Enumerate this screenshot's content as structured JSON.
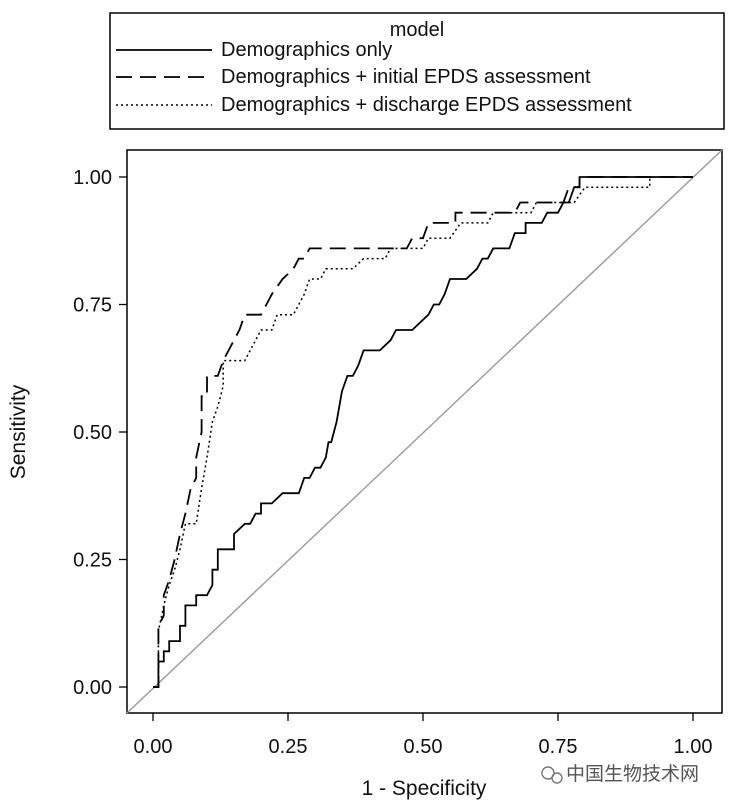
{
  "chart_data": {
    "type": "line",
    "xlabel": "1 - Specificity",
    "ylabel": "Sensitivity",
    "xlim": [
      0,
      1
    ],
    "ylim": [
      0,
      1
    ],
    "xticks": [
      "0.00",
      "0.25",
      "0.50",
      "0.75",
      "1.00"
    ],
    "yticks": [
      "0.00",
      "0.25",
      "0.50",
      "0.75",
      "1.00"
    ],
    "legend": {
      "title": "model",
      "placement": "top"
    },
    "reference_line": {
      "from": [
        0,
        0
      ],
      "to": [
        1,
        1
      ],
      "color": "#9a9a9a"
    },
    "series": [
      {
        "name": "Demographics only",
        "style": "solid",
        "points": [
          [
            0,
            0
          ],
          [
            0.01,
            0
          ],
          [
            0.01,
            0.02
          ],
          [
            0.01,
            0.05
          ],
          [
            0.02,
            0.05
          ],
          [
            0.02,
            0.07
          ],
          [
            0.03,
            0.07
          ],
          [
            0.03,
            0.09
          ],
          [
            0.05,
            0.09
          ],
          [
            0.05,
            0.12
          ],
          [
            0.06,
            0.12
          ],
          [
            0.06,
            0.16
          ],
          [
            0.08,
            0.16
          ],
          [
            0.08,
            0.18
          ],
          [
            0.1,
            0.18
          ],
          [
            0.11,
            0.2
          ],
          [
            0.11,
            0.23
          ],
          [
            0.12,
            0.23
          ],
          [
            0.12,
            0.27
          ],
          [
            0.15,
            0.27
          ],
          [
            0.15,
            0.3
          ],
          [
            0.17,
            0.32
          ],
          [
            0.18,
            0.32
          ],
          [
            0.19,
            0.34
          ],
          [
            0.2,
            0.34
          ],
          [
            0.2,
            0.36
          ],
          [
            0.22,
            0.36
          ],
          [
            0.24,
            0.38
          ],
          [
            0.27,
            0.38
          ],
          [
            0.28,
            0.41
          ],
          [
            0.29,
            0.41
          ],
          [
            0.3,
            0.43
          ],
          [
            0.31,
            0.43
          ],
          [
            0.32,
            0.45
          ],
          [
            0.325,
            0.48
          ],
          [
            0.33,
            0.48
          ],
          [
            0.34,
            0.52
          ],
          [
            0.345,
            0.55
          ],
          [
            0.35,
            0.58
          ],
          [
            0.36,
            0.61
          ],
          [
            0.37,
            0.61
          ],
          [
            0.38,
            0.63
          ],
          [
            0.39,
            0.66
          ],
          [
            0.42,
            0.66
          ],
          [
            0.44,
            0.68
          ],
          [
            0.45,
            0.7
          ],
          [
            0.48,
            0.7
          ],
          [
            0.51,
            0.73
          ],
          [
            0.52,
            0.75
          ],
          [
            0.53,
            0.75
          ],
          [
            0.54,
            0.77
          ],
          [
            0.55,
            0.8
          ],
          [
            0.58,
            0.8
          ],
          [
            0.6,
            0.82
          ],
          [
            0.61,
            0.84
          ],
          [
            0.62,
            0.84
          ],
          [
            0.63,
            0.86
          ],
          [
            0.66,
            0.86
          ],
          [
            0.67,
            0.89
          ],
          [
            0.69,
            0.89
          ],
          [
            0.69,
            0.91
          ],
          [
            0.72,
            0.91
          ],
          [
            0.73,
            0.93
          ],
          [
            0.75,
            0.93
          ],
          [
            0.76,
            0.95
          ],
          [
            0.77,
            0.95
          ],
          [
            0.78,
            0.98
          ],
          [
            0.79,
            0.98
          ],
          [
            0.79,
            1.0
          ],
          [
            0.85,
            1.0
          ],
          [
            1.0,
            1.0
          ]
        ]
      },
      {
        "name": "Demographics + initial EPDS assessment",
        "style": "dashed",
        "points": [
          [
            0,
            0
          ],
          [
            0.01,
            0
          ],
          [
            0.01,
            0.07
          ],
          [
            0.01,
            0.12
          ],
          [
            0.02,
            0.14
          ],
          [
            0.02,
            0.18
          ],
          [
            0.03,
            0.21
          ],
          [
            0.04,
            0.25
          ],
          [
            0.05,
            0.3
          ],
          [
            0.06,
            0.34
          ],
          [
            0.07,
            0.39
          ],
          [
            0.08,
            0.41
          ],
          [
            0.08,
            0.45
          ],
          [
            0.09,
            0.5
          ],
          [
            0.09,
            0.57
          ],
          [
            0.1,
            0.57
          ],
          [
            0.1,
            0.61
          ],
          [
            0.12,
            0.61
          ],
          [
            0.13,
            0.64
          ],
          [
            0.15,
            0.68
          ],
          [
            0.16,
            0.7
          ],
          [
            0.17,
            0.73
          ],
          [
            0.2,
            0.73
          ],
          [
            0.21,
            0.75
          ],
          [
            0.22,
            0.77
          ],
          [
            0.24,
            0.8
          ],
          [
            0.26,
            0.82
          ],
          [
            0.27,
            0.84
          ],
          [
            0.28,
            0.84
          ],
          [
            0.29,
            0.86
          ],
          [
            0.47,
            0.86
          ],
          [
            0.48,
            0.88
          ],
          [
            0.5,
            0.88
          ],
          [
            0.51,
            0.91
          ],
          [
            0.56,
            0.91
          ],
          [
            0.56,
            0.93
          ],
          [
            0.67,
            0.93
          ],
          [
            0.68,
            0.95
          ],
          [
            0.76,
            0.95
          ],
          [
            0.77,
            0.98
          ],
          [
            0.79,
            0.98
          ],
          [
            0.79,
            1.0
          ],
          [
            0.86,
            1.0
          ],
          [
            1.0,
            1.0
          ]
        ]
      },
      {
        "name": "Demographics + discharge EPDS assessment",
        "style": "dotted",
        "points": [
          [
            0,
            0
          ],
          [
            0.01,
            0
          ],
          [
            0.01,
            0.05
          ],
          [
            0.01,
            0.11
          ],
          [
            0.02,
            0.16
          ],
          [
            0.03,
            0.2
          ],
          [
            0.04,
            0.23
          ],
          [
            0.05,
            0.27
          ],
          [
            0.06,
            0.32
          ],
          [
            0.08,
            0.32
          ],
          [
            0.09,
            0.39
          ],
          [
            0.1,
            0.45
          ],
          [
            0.11,
            0.52
          ],
          [
            0.12,
            0.55
          ],
          [
            0.13,
            0.59
          ],
          [
            0.13,
            0.64
          ],
          [
            0.17,
            0.64
          ],
          [
            0.18,
            0.66
          ],
          [
            0.19,
            0.68
          ],
          [
            0.2,
            0.7
          ],
          [
            0.22,
            0.7
          ],
          [
            0.23,
            0.73
          ],
          [
            0.26,
            0.73
          ],
          [
            0.27,
            0.75
          ],
          [
            0.28,
            0.77
          ],
          [
            0.29,
            0.8
          ],
          [
            0.31,
            0.8
          ],
          [
            0.32,
            0.82
          ],
          [
            0.37,
            0.82
          ],
          [
            0.39,
            0.84
          ],
          [
            0.43,
            0.84
          ],
          [
            0.44,
            0.86
          ],
          [
            0.5,
            0.86
          ],
          [
            0.51,
            0.88
          ],
          [
            0.53,
            0.88
          ],
          [
            0.55,
            0.88
          ],
          [
            0.57,
            0.91
          ],
          [
            0.62,
            0.91
          ],
          [
            0.63,
            0.93
          ],
          [
            0.7,
            0.93
          ],
          [
            0.71,
            0.95
          ],
          [
            0.74,
            0.95
          ],
          [
            0.78,
            0.95
          ],
          [
            0.8,
            0.98
          ],
          [
            0.92,
            0.98
          ],
          [
            0.92,
            1.0
          ]
        ]
      }
    ]
  },
  "watermark": "中国生物技术网"
}
